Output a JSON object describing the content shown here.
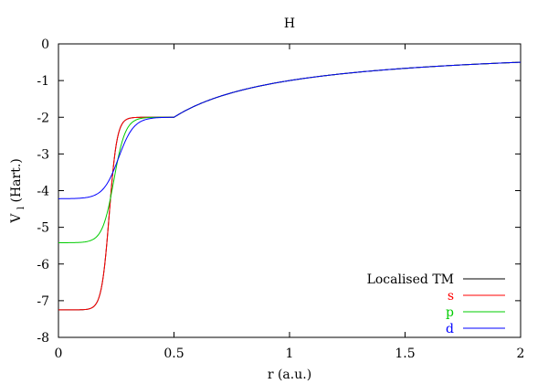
{
  "chart_data": {
    "type": "line",
    "title": "H",
    "xlabel": "r (a.u.)",
    "ylabel_main": "V",
    "ylabel_sub": "l",
    "ylabel_tail": " (Hart.)",
    "xlim": [
      0,
      2
    ],
    "ylim": [
      -8,
      0
    ],
    "x_ticks": [
      0,
      0.5,
      1,
      1.5,
      2
    ],
    "x_tick_labels": [
      "0",
      "0.5",
      "1",
      "1.5",
      "2"
    ],
    "y_ticks": [
      0,
      -1,
      -2,
      -3,
      -4,
      -5,
      -6,
      -7,
      -8
    ],
    "y_tick_labels": [
      "0",
      "-1",
      "-2",
      "-3",
      "-4",
      "-5",
      "-6",
      "-7",
      "-8"
    ],
    "grid": false,
    "legend_position": "bottom-right",
    "series": [
      {
        "name": "Localised TM",
        "color": "#000000",
        "label_color": "#000000",
        "role": "local",
        "rc": 0.5,
        "v0": -7.25,
        "knee": 0.22,
        "sharp": 6
      },
      {
        "name": "s",
        "color": "#ff0000",
        "label_color": "#ff0000",
        "role": "s",
        "rc": 0.5,
        "v0": -7.25,
        "knee": 0.22,
        "sharp": 6
      },
      {
        "name": "p",
        "color": "#00cc00",
        "label_color": "#00cc00",
        "role": "p",
        "rc": 0.5,
        "v0": -5.42,
        "knee": 0.24,
        "sharp": 4
      },
      {
        "name": "d",
        "color": "#0000ff",
        "label_color": "#0000ff",
        "role": "d",
        "rc": 0.5,
        "v0": -4.22,
        "knee": 0.26,
        "sharp": 3
      }
    ]
  }
}
